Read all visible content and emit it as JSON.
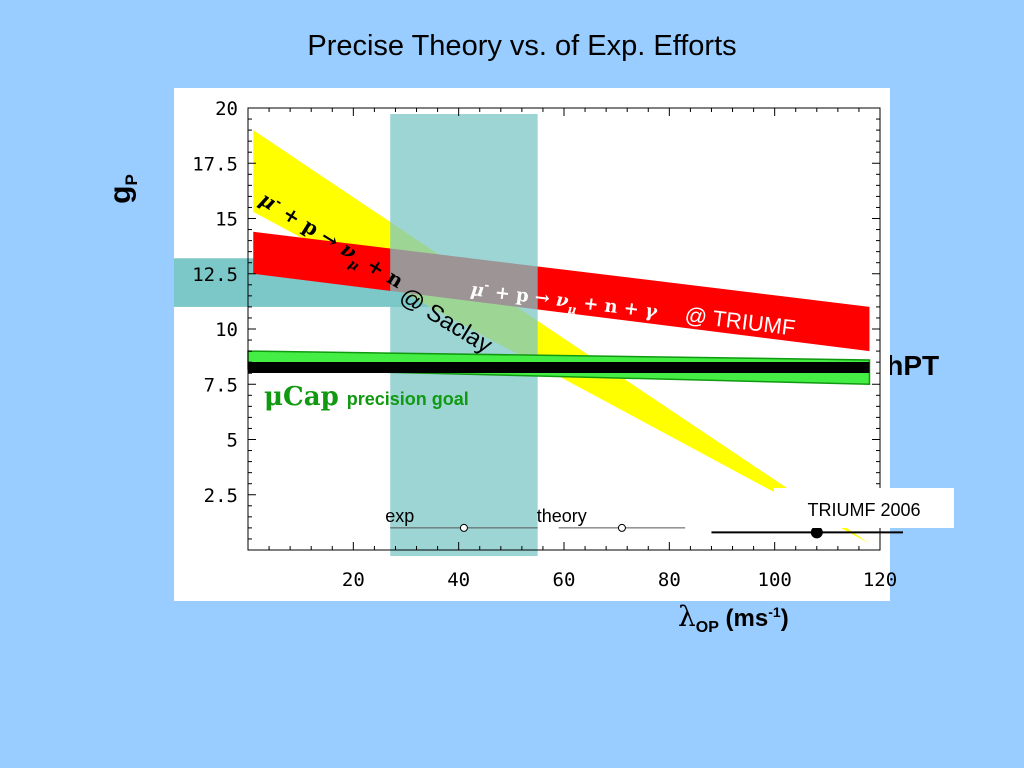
{
  "slide": {
    "title": "Precise Theory vs. of Exp. Efforts",
    "ylabel_main": "g",
    "ylabel_sub": "P",
    "xlabel_symbol": "λ",
    "xlabel_sub": "OP",
    "xlabel_unit_pre": "(ms",
    "xlabel_unit_sup": "-1",
    "xlabel_unit_post": ")",
    "chpt_label": "ChPT"
  },
  "chart_data": {
    "type": "band-plot",
    "xlim": [
      0,
      120
    ],
    "ylim": [
      0,
      20
    ],
    "x_ticks": [
      "20",
      "40",
      "60",
      "80",
      "100",
      "120"
    ],
    "y_ticks": [
      "2.5",
      "5",
      "7.5",
      "10",
      "12.5",
      "15",
      "17.5",
      "20"
    ],
    "grid": false,
    "colors": {
      "saclay_band": "#ffff00",
      "triumf_band": "#ff0000",
      "chpt_line": "#000000",
      "mucap_band": "#44ee44",
      "exp_band_vertical": "#7cc7c7",
      "exp_band_horizontal": "#7cc7c7"
    },
    "bands": [
      {
        "id": "saclay",
        "label_reaction": "μ- + p → νμ + n",
        "label_site": "@ Saclay",
        "upper": [
          [
            1,
            19.0
          ],
          [
            118,
            0.3
          ]
        ],
        "lower": [
          [
            1,
            15.3
          ],
          [
            118,
            0.3
          ]
        ]
      },
      {
        "id": "triumf",
        "label_reaction": "μ- + p → νμ + n + γ",
        "label_site": "@ TRIUMF",
        "upper": [
          [
            1,
            14.4
          ],
          [
            118,
            11.0
          ]
        ],
        "lower": [
          [
            1,
            12.5
          ],
          [
            118,
            9.0
          ]
        ]
      },
      {
        "id": "mucap",
        "label_main": "μCap",
        "label_rest": "precision goal",
        "upper": [
          [
            0,
            9.0
          ],
          [
            118,
            8.6
          ]
        ],
        "lower": [
          [
            0,
            8.2
          ],
          [
            118,
            7.5
          ]
        ]
      }
    ],
    "chpt_value": 8.26,
    "exp_vertical_band": [
      27,
      55
    ],
    "exp_horizontal_band": [
      11.0,
      13.2
    ],
    "legend": {
      "exp_label": "exp",
      "theory_label": "theory",
      "exp_point": 41,
      "exp_range": [
        27,
        55
      ],
      "theory_point": 71,
      "theory_range": [
        59,
        83
      ],
      "y_level": 1.0
    },
    "triumf2006": {
      "label": "TRIUMF 2006",
      "value": 108,
      "range": [
        88,
        118
      ],
      "y_level": 0.8
    }
  }
}
